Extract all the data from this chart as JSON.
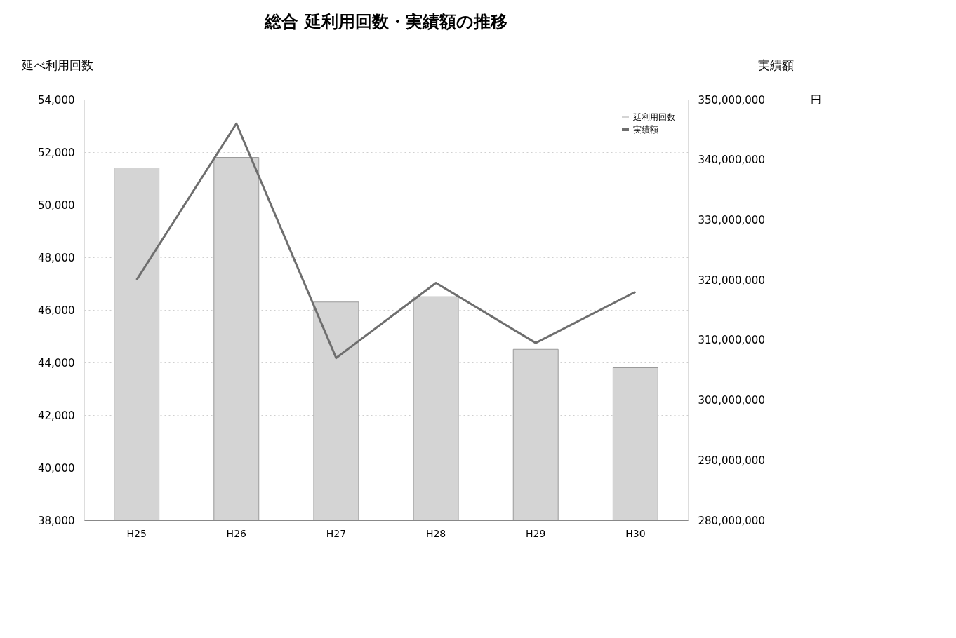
{
  "chart_data": {
    "type": "bar",
    "title": "総合 延利用回数・実績額の推移",
    "ylabel": "延べ利用回数",
    "y2label": "実績額",
    "annotations": [
      "円"
    ],
    "categories": [
      "H25",
      "H26",
      "H27",
      "H28",
      "H29",
      "H30"
    ],
    "series": [
      {
        "name": "延利用回数",
        "color": "#d4d4d4",
        "values": [
          51400,
          51800,
          46300,
          46500,
          44500,
          43800
        ]
      },
      {
        "name": "実績額",
        "type": "line",
        "axis": "y2",
        "color": "#6e6e6e",
        "values": [
          320000000,
          346000000,
          307000000,
          319500000,
          309500000,
          318000000
        ]
      }
    ],
    "ylim": [
      38000,
      54000
    ],
    "yticks": [
      {
        "value": 38000,
        "label": "38,000"
      },
      {
        "value": 40000,
        "label": "40,000"
      },
      {
        "value": 42000,
        "label": "42,000"
      },
      {
        "value": 44000,
        "label": "44,000"
      },
      {
        "value": 46000,
        "label": "46,000"
      },
      {
        "value": 48000,
        "label": "48,000"
      },
      {
        "value": 50000,
        "label": "50,000"
      },
      {
        "value": 52000,
        "label": "52,000"
      },
      {
        "value": 54000,
        "label": "54,000"
      }
    ],
    "y2lim": [
      280000000,
      350000000
    ],
    "y2ticks": [
      {
        "value": 280000000,
        "label": "280,000,000"
      },
      {
        "value": 290000000,
        "label": "290,000,000"
      },
      {
        "value": 300000000,
        "label": "300,000,000"
      },
      {
        "value": 310000000,
        "label": "310,000,000"
      },
      {
        "value": 320000000,
        "label": "320,000,000"
      },
      {
        "value": 330000000,
        "label": "330,000,000"
      },
      {
        "value": 340000000,
        "label": "340,000,000"
      },
      {
        "value": 350000000,
        "label": "350,000,000"
      }
    ],
    "grid": "y",
    "legend": "top right",
    "line_style": "solid",
    "marker": "none"
  }
}
